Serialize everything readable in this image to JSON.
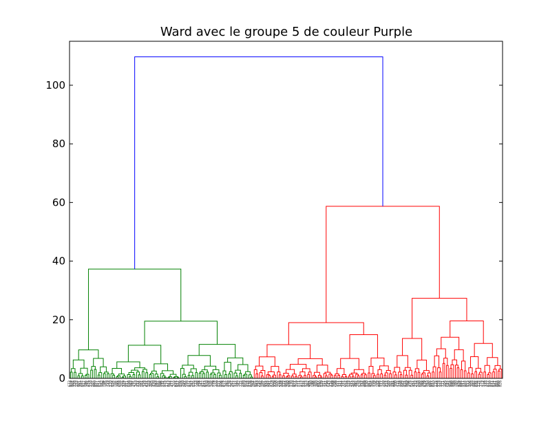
{
  "chart_data": {
    "type": "dendrogram",
    "title": "Ward avec le groupe 5 de couleur Purple",
    "xlabel": "",
    "ylabel": "",
    "ylim": [
      0,
      115
    ],
    "yticks": [
      0,
      20,
      40,
      60,
      80,
      100
    ],
    "ytick_labels": [
      "0",
      "20",
      "40",
      "60",
      "80",
      "100"
    ],
    "grid": false,
    "legend": "none",
    "leaf_count": 240,
    "colors": {
      "above_threshold": "#0000ff",
      "cluster_green": "#008000",
      "cluster_red": "#ff0000",
      "axes": "#000000"
    },
    "links": [
      {
        "name": "root",
        "height": 109.7,
        "left": [
          1,
          2
        ],
        "right": [
          3,
          4
        ],
        "color": "#0000ff"
      },
      {
        "name": "green-cluster",
        "height": 37.3,
        "color": "#008000"
      },
      {
        "name": "red-cluster",
        "height": 58.7,
        "color": "#ff0000"
      },
      {
        "name": "green-left",
        "height": 9.7,
        "color": "#008000"
      },
      {
        "name": "green-right",
        "height": 19.5,
        "color": "#008000"
      },
      {
        "name": "red-left",
        "height": 19.0,
        "color": "#ff0000"
      },
      {
        "name": "red-right",
        "height": 27.3,
        "color": "#ff0000"
      },
      {
        "name": "green-right-a",
        "height": 11.3,
        "color": "#008000"
      },
      {
        "name": "green-right-b",
        "height": 11.6,
        "color": "#008000"
      },
      {
        "name": "red-left-a",
        "height": 11.5,
        "color": "#ff0000"
      },
      {
        "name": "red-left-b",
        "height": 14.9,
        "color": "#ff0000"
      },
      {
        "name": "red-right-a",
        "height": 13.6,
        "color": "#ff0000"
      },
      {
        "name": "red-right-b",
        "height": 19.6,
        "color": "#ff0000"
      }
    ]
  }
}
